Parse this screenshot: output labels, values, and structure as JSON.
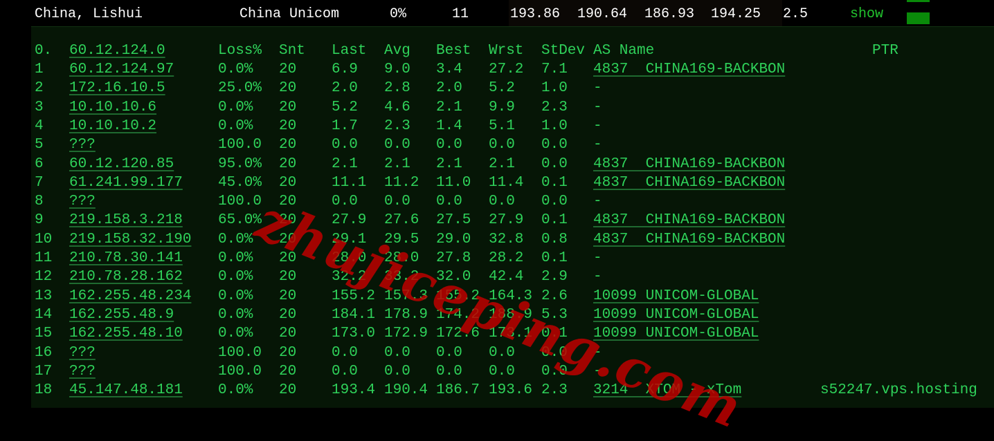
{
  "summary": {
    "location": "China, Lishui",
    "isp": "China Unicom",
    "loss": "0%",
    "hops": "11",
    "last": "193.86",
    "avg": "190.64",
    "best": "186.93",
    "wrst": "194.25",
    "stdev": "2.5",
    "action": "show",
    "bar_color": "#0a8a0a"
  },
  "headers": {
    "hop": "0.",
    "host": "60.12.124.0",
    "loss": "Loss%",
    "snt": "Snt",
    "last": "Last",
    "avg": "Avg",
    "best": "Best",
    "wrst": "Wrst",
    "stdev": "StDev",
    "as": "AS Name",
    "ptr": "PTR"
  },
  "rows": [
    {
      "hop": "1",
      "host": "60.12.124.97",
      "loss": "0.0%",
      "snt": "20",
      "last": "6.9",
      "avg": "9.0",
      "best": "3.4",
      "wrst": "27.2",
      "stdev": "7.1",
      "as": "4837  CHINA169-BACKBON",
      "ptr": ""
    },
    {
      "hop": "2",
      "host": "172.16.10.5",
      "loss": "25.0%",
      "snt": "20",
      "last": "2.0",
      "avg": "2.8",
      "best": "2.0",
      "wrst": "5.2",
      "stdev": "1.0",
      "as": "-",
      "ptr": ""
    },
    {
      "hop": "3",
      "host": "10.10.10.6",
      "loss": "0.0%",
      "snt": "20",
      "last": "5.2",
      "avg": "4.6",
      "best": "2.1",
      "wrst": "9.9",
      "stdev": "2.3",
      "as": "-",
      "ptr": ""
    },
    {
      "hop": "4",
      "host": "10.10.10.2",
      "loss": "0.0%",
      "snt": "20",
      "last": "1.7",
      "avg": "2.3",
      "best": "1.4",
      "wrst": "5.1",
      "stdev": "1.0",
      "as": "-",
      "ptr": ""
    },
    {
      "hop": "5",
      "host": "???",
      "loss": "100.0",
      "snt": "20",
      "last": "0.0",
      "avg": "0.0",
      "best": "0.0",
      "wrst": "0.0",
      "stdev": "0.0",
      "as": "-",
      "ptr": ""
    },
    {
      "hop": "6",
      "host": "60.12.120.85",
      "loss": "95.0%",
      "snt": "20",
      "last": "2.1",
      "avg": "2.1",
      "best": "2.1",
      "wrst": "2.1",
      "stdev": "0.0",
      "as": "4837  CHINA169-BACKBON",
      "ptr": ""
    },
    {
      "hop": "7",
      "host": "61.241.99.177",
      "loss": "45.0%",
      "snt": "20",
      "last": "11.1",
      "avg": "11.2",
      "best": "11.0",
      "wrst": "11.4",
      "stdev": "0.1",
      "as": "4837  CHINA169-BACKBON",
      "ptr": ""
    },
    {
      "hop": "8",
      "host": "???",
      "loss": "100.0",
      "snt": "20",
      "last": "0.0",
      "avg": "0.0",
      "best": "0.0",
      "wrst": "0.0",
      "stdev": "0.0",
      "as": "-",
      "ptr": ""
    },
    {
      "hop": "9",
      "host": "219.158.3.218",
      "loss": "65.0%",
      "snt": "20",
      "last": "27.9",
      "avg": "27.6",
      "best": "27.5",
      "wrst": "27.9",
      "stdev": "0.1",
      "as": "4837  CHINA169-BACKBON",
      "ptr": ""
    },
    {
      "hop": "10",
      "host": "219.158.32.190",
      "loss": "0.0%",
      "snt": "20",
      "last": "29.1",
      "avg": "29.5",
      "best": "29.0",
      "wrst": "32.8",
      "stdev": "0.8",
      "as": "4837  CHINA169-BACKBON",
      "ptr": ""
    },
    {
      "hop": "11",
      "host": "210.78.30.141",
      "loss": "0.0%",
      "snt": "20",
      "last": "28.0",
      "avg": "28.0",
      "best": "27.8",
      "wrst": "28.2",
      "stdev": "0.1",
      "as": "-",
      "ptr": ""
    },
    {
      "hop": "12",
      "host": "210.78.28.162",
      "loss": "0.0%",
      "snt": "20",
      "last": "32.2",
      "avg": "33.2",
      "best": "32.0",
      "wrst": "42.4",
      "stdev": "2.9",
      "as": "-",
      "ptr": ""
    },
    {
      "hop": "13",
      "host": "162.255.48.234",
      "loss": "0.0%",
      "snt": "20",
      "last": "155.2",
      "avg": "157.3",
      "best": "155.2",
      "wrst": "164.3",
      "stdev": "2.6",
      "as": "10099 UNICOM-GLOBAL",
      "ptr": ""
    },
    {
      "hop": "14",
      "host": "162.255.48.9",
      "loss": "0.0%",
      "snt": "20",
      "last": "184.1",
      "avg": "178.9",
      "best": "174.2",
      "wrst": "188.9",
      "stdev": "5.3",
      "as": "10099 UNICOM-GLOBAL",
      "ptr": ""
    },
    {
      "hop": "15",
      "host": "162.255.48.10",
      "loss": "0.0%",
      "snt": "20",
      "last": "173.0",
      "avg": "172.9",
      "best": "172.6",
      "wrst": "173.1",
      "stdev": "0.1",
      "as": "10099 UNICOM-GLOBAL",
      "ptr": ""
    },
    {
      "hop": "16",
      "host": "???",
      "loss": "100.0",
      "snt": "20",
      "last": "0.0",
      "avg": "0.0",
      "best": "0.0",
      "wrst": "0.0",
      "stdev": "0.0",
      "as": "-",
      "ptr": ""
    },
    {
      "hop": "17",
      "host": "???",
      "loss": "100.0",
      "snt": "20",
      "last": "0.0",
      "avg": "0.0",
      "best": "0.0",
      "wrst": "0.0",
      "stdev": "0.0",
      "as": "-",
      "ptr": ""
    },
    {
      "hop": "18",
      "host": "45.147.48.181",
      "loss": "0.0%",
      "snt": "20",
      "last": "193.4",
      "avg": "190.4",
      "best": "186.7",
      "wrst": "193.6",
      "stdev": "2.3",
      "as": "3214  XTOM - xTom",
      "ptr": "s52247.vps.hosting"
    }
  ],
  "watermark": "zhujiceping.com"
}
